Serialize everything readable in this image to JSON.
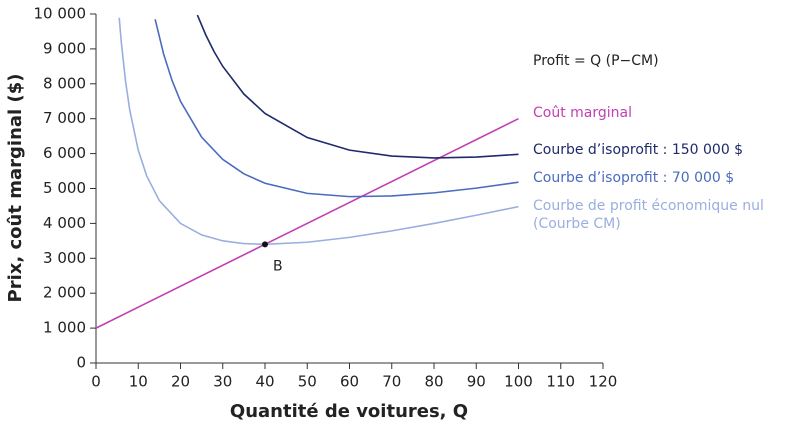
{
  "chart_data": {
    "type": "line",
    "xlabel": "Quantité de voitures, Q",
    "ylabel": "Prix, coût marginal ($)",
    "annotation": "Profit = Q (P−CM)",
    "xlim": [
      0,
      120
    ],
    "xticks": [
      0,
      10,
      20,
      30,
      40,
      50,
      60,
      70,
      80,
      90,
      100,
      110,
      120
    ],
    "ylim": [
      0,
      10000
    ],
    "yticks": [
      0,
      {
        "value": 1000,
        "label": "1 000"
      },
      {
        "value": 2000,
        "label": "2 000"
      },
      {
        "value": 3000,
        "label": "3 000"
      },
      {
        "value": 4000,
        "label": "4 000"
      },
      {
        "value": 5000,
        "label": "5 000"
      },
      {
        "value": 6000,
        "label": "6 000"
      },
      {
        "value": 7000,
        "label": "7 000"
      },
      {
        "value": 8000,
        "label": "8 000"
      },
      {
        "value": 9000,
        "label": "9 000"
      },
      {
        "value": 10000,
        "label": "10 000"
      }
    ],
    "grid": false,
    "series": [
      {
        "name": "Coût marginal",
        "color": "#c23fb3",
        "x": [
          0,
          100
        ],
        "values": [
          1000,
          7000
        ]
      },
      {
        "name": "Courbe d’isoprofit : 150 000 $",
        "color": "#1f2a6b",
        "x": [
          24,
          26,
          28,
          30,
          35,
          40,
          50,
          60,
          70,
          80,
          90,
          100
        ],
        "values": [
          9970,
          9395,
          8911,
          8500,
          7707,
          7150,
          6460,
          6100,
          5929,
          5875,
          5900,
          5980
        ]
      },
      {
        "name": "Courbe d’isoprofit : 70 000 $",
        "color": "#4a6bbf",
        "x": [
          14,
          16,
          18,
          20,
          25,
          30,
          35,
          40,
          50,
          60,
          70,
          80,
          90,
          100
        ],
        "values": [
          9849,
          8855,
          8096,
          7500,
          6470,
          5833,
          5421,
          5150,
          4860,
          4767,
          4786,
          4875,
          5011,
          5180
        ]
      },
      {
        "name": "Courbe de profit économique nul (Courbe CM)",
        "color": "#9aaee0",
        "x": [
          5.5,
          6,
          7,
          8,
          10,
          12,
          15,
          20,
          25,
          30,
          35,
          40,
          50,
          60,
          70,
          80,
          90,
          100
        ],
        "values": [
          9892,
          9180,
          8067,
          7240,
          6100,
          5360,
          4650,
          4000,
          3670,
          3500,
          3421,
          3400,
          3460,
          3600,
          3786,
          4000,
          4233,
          4480
        ]
      }
    ],
    "point": {
      "x": 40,
      "y": 3400,
      "label": "B"
    }
  }
}
